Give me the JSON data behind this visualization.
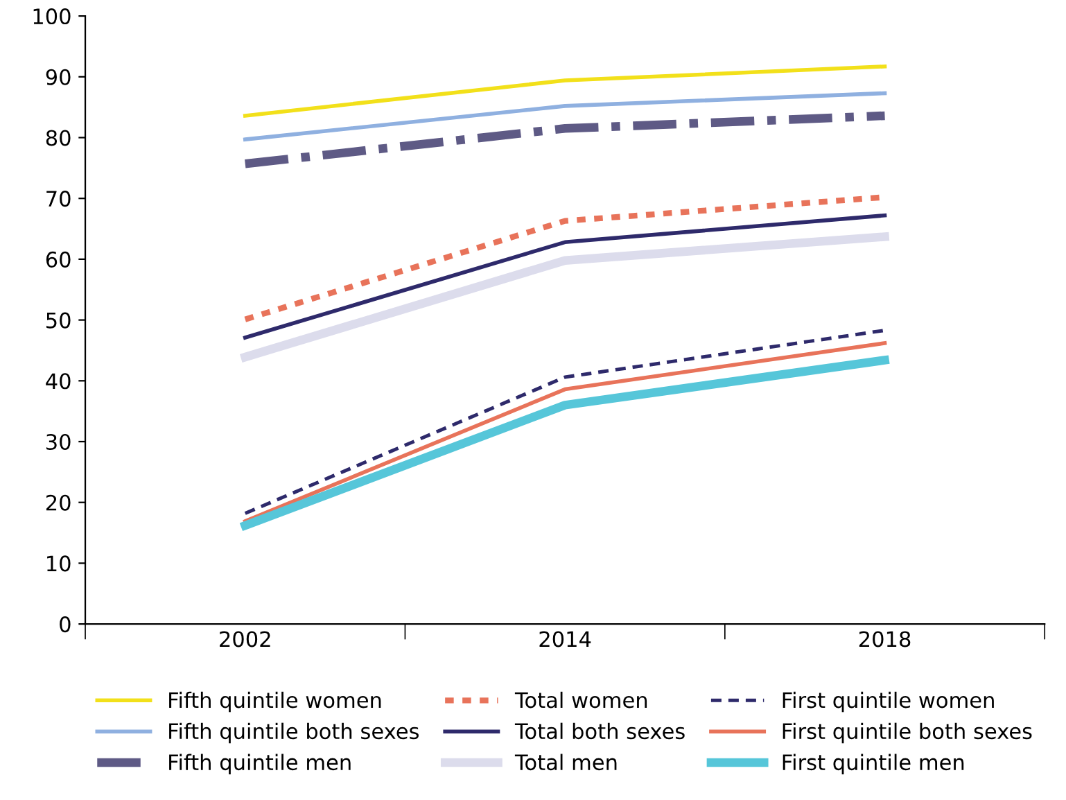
{
  "chart_data": {
    "type": "line",
    "categories": [
      "2002",
      "2014",
      "2018"
    ],
    "ylim": [
      0,
      100
    ],
    "yticks": [
      0,
      10,
      20,
      30,
      40,
      50,
      60,
      70,
      80,
      90,
      100
    ],
    "grid": false,
    "legend": "bottom",
    "marker": "none",
    "series": [
      {
        "name": "Fifth quintile women",
        "color": "#f2e01a",
        "line_style": "solid",
        "values": [
          83.6,
          89.4,
          91.7
        ]
      },
      {
        "name": "Fifth quintile both sexes",
        "color": "#8fb0e0",
        "line_style": "solid",
        "values": [
          79.7,
          85.2,
          87.3
        ]
      },
      {
        "name": "Fifth quintile men",
        "color": "#5e5a85",
        "line_style": "dashdot",
        "values": [
          75.7,
          81.5,
          83.6
        ]
      },
      {
        "name": "Total women",
        "color": "#e8735a",
        "line_style": "dotted",
        "values": [
          50.1,
          66.3,
          70.2
        ]
      },
      {
        "name": "Total both sexes",
        "color": "#2e2a6b",
        "line_style": "solid",
        "values": [
          47.1,
          62.8,
          67.2
        ]
      },
      {
        "name": "Total men",
        "color": "#dcdcec",
        "line_style": "solid",
        "values": [
          43.9,
          59.8,
          63.7
        ]
      },
      {
        "name": "First quintile women",
        "color": "#2e2a6b",
        "line_style": "dashed",
        "values": [
          18.2,
          40.6,
          48.3
        ]
      },
      {
        "name": "First quintile both sexes",
        "color": "#e8735a",
        "line_style": "solid",
        "values": [
          16.9,
          38.6,
          46.2
        ]
      },
      {
        "name": "First quintile men",
        "color": "#56c6d9",
        "line_style": "solid",
        "values": [
          16.2,
          36.0,
          43.4
        ]
      }
    ]
  }
}
